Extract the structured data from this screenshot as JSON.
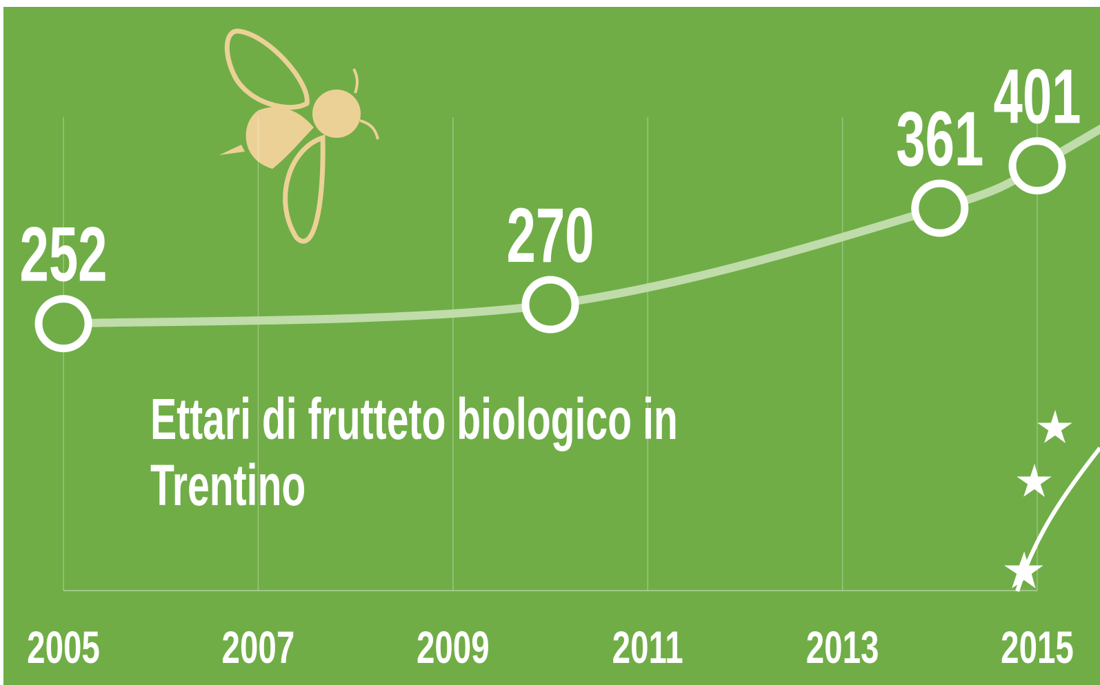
{
  "chart_data": {
    "type": "line",
    "title": "Ettari di frutteto biologico in Trentino",
    "x": [
      2005,
      2010,
      2014,
      2015
    ],
    "values": [
      252,
      270,
      361,
      401
    ],
    "color": "#c0dcaa",
    "marker_color": "#ffffff",
    "background": "#70ad47",
    "xlim": [
      2005,
      2015
    ],
    "xticks": [
      2005,
      2007,
      2009,
      2011,
      2013,
      2015
    ],
    "ylim": [
      0,
      500
    ],
    "grid": true
  }
}
